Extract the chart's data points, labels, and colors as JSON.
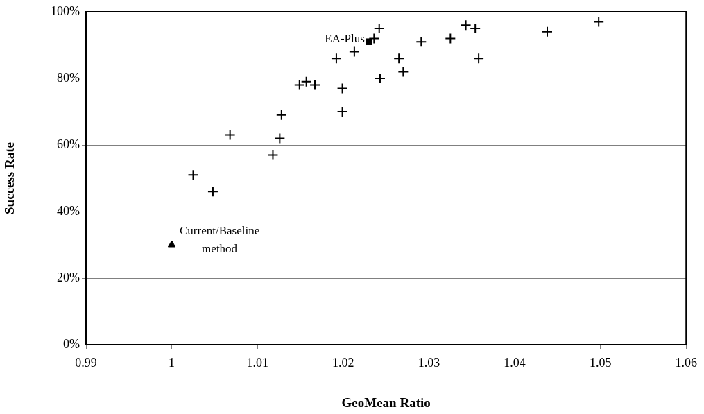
{
  "chart_data": {
    "type": "scatter",
    "xlabel": "GeoMean Ratio",
    "ylabel": "Success Rate",
    "xlim": [
      0.99,
      1.06
    ],
    "xticks": [
      0.99,
      1,
      1.01,
      1.02,
      1.03,
      1.04,
      1.05,
      1.06
    ],
    "ylim": [
      0,
      100
    ],
    "yticks": [
      {
        "value": 0,
        "label": "0%"
      },
      {
        "value": 20,
        "label": "20%"
      },
      {
        "value": 40,
        "label": "40%"
      },
      {
        "value": 60,
        "label": "60%"
      },
      {
        "value": 80,
        "label": "80%"
      },
      {
        "value": 100,
        "label": "100%"
      }
    ],
    "grid": "y",
    "legend": false,
    "series": [
      {
        "color": "#000000",
        "marker": "cross",
        "x": [
          1.0025,
          1.0048,
          1.0068,
          1.0118,
          1.0126,
          1.0128,
          1.0149,
          1.0157,
          1.0167,
          1.0199,
          1.0199,
          1.0192,
          1.0213,
          1.0242,
          1.0236,
          1.0243,
          1.0265,
          1.027,
          1.0291,
          1.0325,
          1.0343,
          1.0354,
          1.0358,
          1.0438,
          1.0498
        ],
        "values": [
          51,
          46,
          63,
          57,
          62,
          69,
          78,
          79,
          78,
          77,
          70,
          86,
          88,
          95,
          92,
          80,
          86,
          82,
          91,
          92,
          96,
          95,
          86,
          94,
          97
        ]
      },
      {
        "name": "EA-Plus",
        "color": "#000000",
        "marker": "square",
        "x": [
          1.023
        ],
        "values": [
          91
        ]
      },
      {
        "name": "Current/Baseline method",
        "color": "#000000",
        "marker": "triangle",
        "x": [
          1.0
        ],
        "values": [
          30
        ]
      }
    ]
  }
}
